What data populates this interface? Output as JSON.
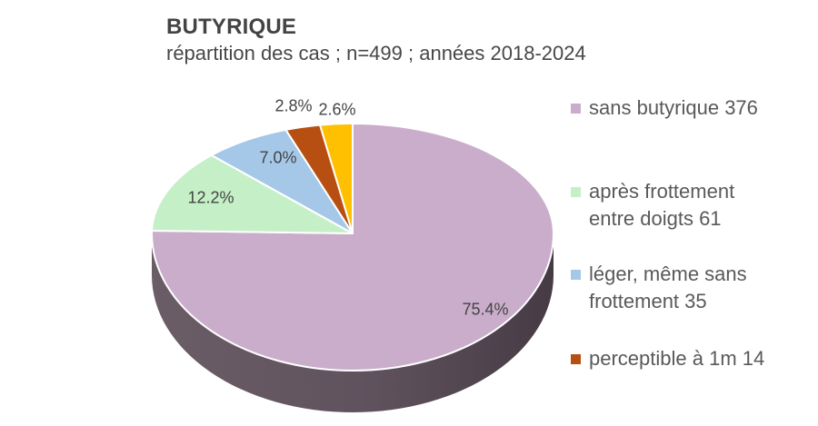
{
  "title": "BUTYRIQUE",
  "subtitle": "répartition des cas ; n=499 ; années 2018-2024",
  "chart_data": {
    "type": "pie",
    "style": "3d",
    "title": "BUTYRIQUE",
    "subtitle": "répartition des cas ; n=499 ; années 2018-2024",
    "n_total": 499,
    "years": "2018-2024",
    "start_angle_deg": 0,
    "direction": "clockwise",
    "legend_position": "right",
    "slices": [
      {
        "name": "sans butyrique",
        "count": 376,
        "percent": 75.4,
        "data_label": "75.4%",
        "color": "#c9adcb"
      },
      {
        "name": "après frottement entre doigts",
        "count": 61,
        "percent": 12.2,
        "data_label": "12.2%",
        "color": "#c5efc6"
      },
      {
        "name": "léger, même sans frottement",
        "count": 35,
        "percent": 7.0,
        "data_label": "7.0%",
        "color": "#a5c8e9"
      },
      {
        "name": "perceptible à 1m",
        "count": 14,
        "percent": 2.8,
        "data_label": "2.8%",
        "color": "#b84f12"
      },
      {
        "name": "",
        "percent": 2.6,
        "data_label": "2.6%",
        "color": "#fec000"
      }
    ]
  },
  "legend": {
    "items": [
      {
        "label": "sans butyrique 376",
        "lines": [
          "sans butyrique 376"
        ],
        "color": "#c9adcb"
      },
      {
        "label": "après frottement entre doigts 61",
        "lines": [
          "après frottement",
          "entre doigts 61"
        ],
        "color": "#c5efc6"
      },
      {
        "label": "léger, même sans frottement 35",
        "lines": [
          "léger, même sans",
          "frottement 35"
        ],
        "color": "#a5c8e9"
      },
      {
        "label": "perceptible à 1m 14",
        "lines": [
          "perceptible à 1m 14"
        ],
        "color": "#b84f12"
      }
    ]
  },
  "colors": {
    "background": "#ffffff",
    "pie_side_left": "#6b5d66",
    "pie_side_mid": "#5f525d",
    "pie_side_right": "#463b44",
    "slice_border": "#ffffff",
    "title_text": "#434343",
    "legend_text": "#595959",
    "label_text": "#444444"
  }
}
